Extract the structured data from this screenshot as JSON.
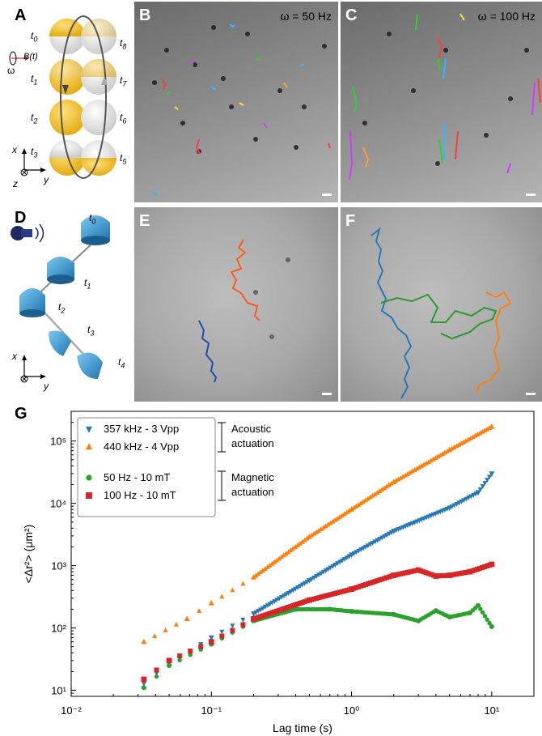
{
  "panels": {
    "A": {
      "label": "A",
      "field_label": "B(t)",
      "omega": "ω",
      "times": [
        "t0",
        "t1",
        "t2",
        "t3",
        "t5",
        "t6",
        "t7",
        "t8"
      ],
      "axes": {
        "x": "x",
        "y": "y",
        "z": "z"
      }
    },
    "B": {
      "label": "B",
      "frequency": "ω = 50 Hz"
    },
    "C": {
      "label": "C",
      "frequency": "ω = 100 Hz"
    },
    "D": {
      "label": "D",
      "times": [
        "t0",
        "t1",
        "t2",
        "t3",
        "t4"
      ],
      "axes": {
        "x": "x",
        "y": "y"
      }
    },
    "E": {
      "label": "E"
    },
    "F": {
      "label": "F"
    },
    "G": {
      "label": "G"
    }
  },
  "colors": {
    "gold": "#f2c12e",
    "blue_particle": "#3b9bd6",
    "acoustic_357": "#2878b5",
    "acoustic_440": "#ff7f0e",
    "magnetic_50": "#2ca02c",
    "magnetic_100": "#d62728",
    "track_orange": "#ff5a1f",
    "track_blue": "#1f4fa8",
    "track_green": "#2e9a2e"
  },
  "chart_data": {
    "type": "scatter",
    "xlabel": "Lag time (s)",
    "ylabel": "<Δr²> (μm²)",
    "xscale": "log",
    "yscale": "log",
    "xlim": [
      0.01,
      20
    ],
    "ylim": [
      8,
      300000
    ],
    "xticks": [
      "10⁻²",
      "10⁻¹",
      "10⁰",
      "10¹"
    ],
    "yticks": [
      "10¹",
      "10²",
      "10³",
      "10⁴",
      "10⁵"
    ],
    "legend_position": "top-left",
    "groups": [
      {
        "name": "Acoustic actuation",
        "members": [
          "357 kHz - 3 Vpp",
          "440 kHz - 4 Vpp"
        ]
      },
      {
        "name": "Magnetic actuation",
        "members": [
          "50 Hz - 10 mT",
          "100 Hz - 10 mT"
        ]
      }
    ],
    "series": [
      {
        "name": "357 kHz - 3 Vpp",
        "marker": "triangle-down",
        "color": "#2878b5",
        "x": [
          0.033,
          0.05,
          0.1,
          0.2,
          0.5,
          1,
          2,
          5,
          8,
          10
        ],
        "y": [
          13,
          27,
          70,
          170,
          580,
          1500,
          3600,
          8500,
          15000,
          30000
        ]
      },
      {
        "name": "440 kHz - 4 Vpp",
        "marker": "triangle-up",
        "color": "#ff7f0e",
        "x": [
          0.033,
          0.067,
          0.1,
          0.2,
          0.5,
          1,
          2,
          5,
          10
        ],
        "y": [
          60,
          140,
          250,
          650,
          2900,
          8000,
          22000,
          72000,
          170000
        ]
      },
      {
        "name": "50 Hz - 10 mT",
        "marker": "circle",
        "color": "#2ca02c",
        "x": [
          0.033,
          0.05,
          0.1,
          0.2,
          0.4,
          0.7,
          1,
          2,
          3,
          4,
          5,
          7,
          8,
          10
        ],
        "y": [
          11,
          25,
          55,
          130,
          200,
          200,
          185,
          165,
          130,
          190,
          150,
          175,
          230,
          105
        ]
      },
      {
        "name": "100 Hz - 10 mT",
        "marker": "square",
        "color": "#d62728",
        "x": [
          0.033,
          0.05,
          0.1,
          0.2,
          0.5,
          1,
          2,
          3,
          4,
          5,
          7,
          10
        ],
        "y": [
          15,
          30,
          60,
          140,
          280,
          420,
          700,
          850,
          680,
          700,
          800,
          1050
        ]
      }
    ]
  }
}
